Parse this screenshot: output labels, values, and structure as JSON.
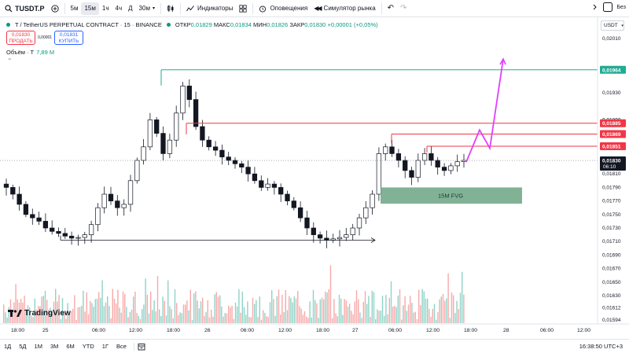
{
  "toolbar": {
    "symbol": "TUSDT.P",
    "intervals": [
      "5м",
      "15м",
      "1ч",
      "4ч",
      "Д",
      "30м"
    ],
    "active_interval_index": 1,
    "indicators_label": "Индикаторы",
    "alerts_label": "Оповещения",
    "replay_label": "Симулятор рынка",
    "right_label": "Без"
  },
  "legend": {
    "title": "T / TetherUS PERPETUAL CONTRACT · 15 · BINANCE",
    "open_label": "ОТКР",
    "open": "0,01829",
    "high_label": "МАКС",
    "high": "0,01834",
    "low_label": "МИН",
    "low": "0,01826",
    "close_label": "ЗАКР",
    "close": "0,01830",
    "change": "+0,00001 (+0,05%)"
  },
  "trade": {
    "sell_price": "0,01830",
    "sell_label": "ПРОДАТЬ",
    "spread": "0,00001",
    "buy_price": "0,01831",
    "buy_label": "КУПИТЬ"
  },
  "volume": {
    "label": "Объём · T",
    "value": "7,89 M"
  },
  "currency": "USDT",
  "price_axis": {
    "ticks": [
      "0,02010",
      "0,01930",
      "0,01890",
      "0,01810",
      "0,01790",
      "0,01770",
      "0,01750",
      "0,01730",
      "0,01710",
      "0,01690",
      "0,01670",
      "0,01650",
      "0,01630",
      "0,01612",
      "0,01594"
    ]
  },
  "price_labels": {
    "green": "0,01964",
    "red1": "0,01885",
    "red2": "0,01869",
    "red3": "0,01851",
    "current": "0,01830",
    "countdown": "06:10"
  },
  "fvg_label": "15M FVG",
  "time_axis": [
    "18:00",
    "25",
    "06:00",
    "12:00",
    "18:00",
    "26",
    "06:00",
    "12:00",
    "18:00",
    "27",
    "06:00",
    "12:00",
    "18:00",
    "28",
    "06:00",
    "12:00"
  ],
  "logo_text": "TradingView",
  "bottom": {
    "timeframes": [
      "1Д",
      "5Д",
      "1М",
      "3М",
      "6М",
      "YTD",
      "1Г",
      "Все"
    ],
    "clock": "16:38:50 UTC+3"
  },
  "colors": {
    "up": "#089981",
    "down": "#131722",
    "red_level": "#f23645",
    "green_level": "#22ab94",
    "fvg": "#6ba583",
    "projection": "#e040fb",
    "volume_up": "#8fd3c7",
    "volume_down": "#f7a9a9"
  },
  "chart_data": {
    "type": "candlestick",
    "price_ylim": [
      0.01594,
      0.0203
    ],
    "levels": [
      {
        "name": "green",
        "price": 0.01964
      },
      {
        "name": "red1",
        "price": 0.01885
      },
      {
        "name": "red2",
        "price": 0.01869
      },
      {
        "name": "red3",
        "price": 0.01851
      }
    ],
    "close": [
      0.0179,
      0.0178,
      0.01765,
      0.0175,
      0.01745,
      0.0174,
      0.0173,
      0.01725,
      0.01722,
      0.01718,
      0.01715,
      0.01716,
      0.0172,
      0.01735,
      0.0176,
      0.0178,
      0.0177,
      0.0176,
      0.01765,
      0.018,
      0.0183,
      0.0185,
      0.0189,
      0.0187,
      0.0184,
      0.0186,
      0.019,
      0.0194,
      0.0192,
      0.0188,
      0.0186,
      0.0185,
      0.01845,
      0.01835,
      0.0183,
      0.01825,
      0.0182,
      0.0181,
      0.018,
      0.0179,
      0.01795,
      0.0179,
      0.0178,
      0.0177,
      0.0176,
      0.01745,
      0.0173,
      0.0172,
      0.01715,
      0.01712,
      0.01714,
      0.01716,
      0.0172,
      0.0173,
      0.01745,
      0.0176,
      0.0178,
      0.0184,
      0.0185,
      0.0184,
      0.0183,
      0.01815,
      0.01805,
      0.0183,
      0.0184,
      0.0183,
      0.0182,
      0.01815,
      0.01822,
      0.01828,
      0.0183
    ]
  }
}
